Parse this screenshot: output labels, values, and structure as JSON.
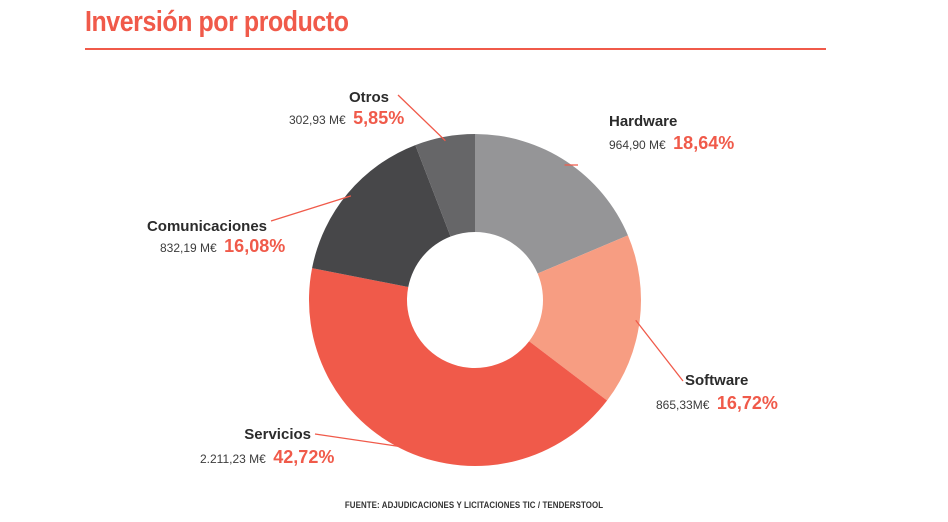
{
  "chart_data": {
    "type": "pie",
    "donut": true,
    "title": "Inversión por producto",
    "slices": [
      {
        "id": "hardware",
        "label": "Hardware",
        "value_text": "964,90 M€",
        "value": 964.9,
        "percent": 18.64,
        "percent_text": "18,64%",
        "color": "#959597"
      },
      {
        "id": "software",
        "label": "Software",
        "value_text": "865,33M€",
        "value": 865.33,
        "percent": 16.72,
        "percent_text": "16,72%",
        "color": "#f79d82"
      },
      {
        "id": "servicios",
        "label": "Servicios",
        "value_text": "2.211,23 M€",
        "value": 2211.23,
        "percent": 42.72,
        "percent_text": "42,72%",
        "color": "#f05a4a"
      },
      {
        "id": "comunicaciones",
        "label": "Comunicaciones",
        "value_text": "832,19 M€",
        "value": 832.19,
        "percent": 16.08,
        "percent_text": "16,08%",
        "color": "#474749"
      },
      {
        "id": "otros",
        "label": "Otros",
        "value_text": "302,93 M€",
        "value": 302.93,
        "percent": 5.85,
        "percent_text": "5,85%",
        "color": "#666668"
      }
    ],
    "source": "FUENTE: ADJUDICACIONES Y LICITACIONES TIC / TENDERSTOOL"
  },
  "colors": {
    "accent": "#f05a4a",
    "text_dark": "#2b2b2b"
  }
}
